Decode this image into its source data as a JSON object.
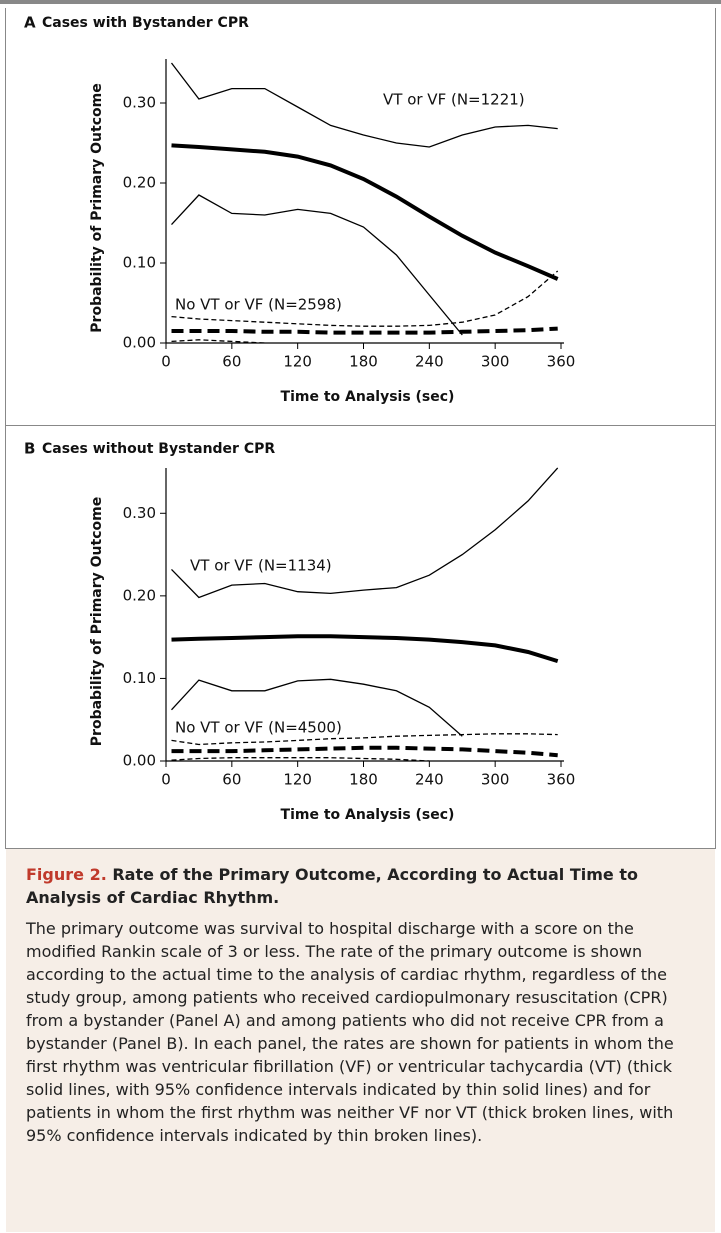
{
  "chart_data": [
    {
      "type": "line",
      "panel": "A",
      "title": "Cases with Bystander CPR",
      "xlabel": "Time to Analysis (sec)",
      "ylabel": "Probability of Primary Outcome",
      "xlim": [
        0,
        360
      ],
      "xticks": [
        0,
        60,
        120,
        180,
        240,
        300,
        360
      ],
      "ylim": [
        0,
        0.35
      ],
      "yticks": [
        {
          "value": 0,
          "label": "0.00"
        },
        {
          "value": 0.1,
          "label": "0.10"
        },
        {
          "value": 0.2,
          "label": "0.20"
        },
        {
          "value": 0.3,
          "label": "0.30"
        }
      ],
      "x": [
        5,
        30,
        60,
        90,
        120,
        150,
        180,
        210,
        240,
        270,
        300,
        330,
        357
      ],
      "series": [
        {
          "color": "#000000",
          "style": "solid",
          "width": 4,
          "values": [
            0.247,
            0.245,
            0.242,
            0.239,
            0.233,
            0.222,
            0.205,
            0.183,
            0.158,
            0.134,
            0.113,
            0.096,
            0.08
          ]
        },
        {
          "color": "#000000",
          "style": "solid",
          "width": 1.3,
          "values": [
            0.35,
            0.305,
            0.318,
            0.318,
            0.295,
            0.272,
            0.26,
            0.25,
            0.245,
            0.26,
            0.27,
            0.272,
            0.268
          ]
        },
        {
          "color": "#000000",
          "style": "solid",
          "width": 1.3,
          "values": [
            0.148,
            0.185,
            0.162,
            0.16,
            0.167,
            0.162,
            0.145,
            0.11,
            0.06,
            0.01,
            null,
            null,
            null
          ]
        },
        {
          "color": "#000000",
          "style": "dashed",
          "width": 4,
          "values": [
            0.015,
            0.015,
            0.015,
            0.014,
            0.014,
            0.013,
            0.013,
            0.013,
            0.013,
            0.014,
            0.015,
            0.016,
            0.018
          ]
        },
        {
          "color": "#000000",
          "style": "dashed",
          "width": 1.3,
          "values": [
            0.033,
            0.03,
            0.028,
            0.026,
            0.024,
            0.022,
            0.021,
            0.021,
            0.022,
            0.026,
            0.035,
            0.058,
            0.09
          ]
        },
        {
          "color": "#000000",
          "style": "dashed",
          "width": 1.3,
          "values": [
            0.002,
            0.004,
            0.002,
            0.0,
            null,
            null,
            null,
            null,
            null,
            null,
            null,
            null,
            null
          ]
        }
      ],
      "annotations": [
        "VT or VF (N=1221)",
        "No VT or VF (N=2598)"
      ]
    },
    {
      "type": "line",
      "panel": "B",
      "title": "Cases without Bystander CPR",
      "xlabel": "Time to Analysis (sec)",
      "ylabel": "Probability of Primary Outcome",
      "xlim": [
        0,
        360
      ],
      "xticks": [
        0,
        60,
        120,
        180,
        240,
        300,
        360
      ],
      "ylim": [
        0,
        0.35
      ],
      "yticks": [
        {
          "value": 0,
          "label": "0.00"
        },
        {
          "value": 0.1,
          "label": "0.10"
        },
        {
          "value": 0.2,
          "label": "0.20"
        },
        {
          "value": 0.3,
          "label": "0.30"
        }
      ],
      "x": [
        5,
        30,
        60,
        90,
        120,
        150,
        180,
        210,
        240,
        270,
        300,
        330,
        357
      ],
      "series": [
        {
          "color": "#000000",
          "style": "solid",
          "width": 4,
          "values": [
            0.147,
            0.148,
            0.149,
            0.15,
            0.151,
            0.151,
            0.15,
            0.149,
            0.147,
            0.144,
            0.14,
            0.132,
            0.121
          ]
        },
        {
          "color": "#000000",
          "style": "solid",
          "width": 1.3,
          "values": [
            0.232,
            0.198,
            0.213,
            0.215,
            0.205,
            0.203,
            0.207,
            0.21,
            0.225,
            0.25,
            0.28,
            0.315,
            0.355
          ]
        },
        {
          "color": "#000000",
          "style": "solid",
          "width": 1.3,
          "values": [
            0.062,
            0.098,
            0.085,
            0.085,
            0.097,
            0.099,
            0.093,
            0.085,
            0.065,
            0.03,
            null,
            null,
            null
          ]
        },
        {
          "color": "#000000",
          "style": "dashed",
          "width": 4,
          "values": [
            0.012,
            0.012,
            0.012,
            0.013,
            0.014,
            0.015,
            0.016,
            0.016,
            0.015,
            0.014,
            0.012,
            0.01,
            0.007
          ]
        },
        {
          "color": "#000000",
          "style": "dashed",
          "width": 1.3,
          "values": [
            0.025,
            0.02,
            0.022,
            0.023,
            0.025,
            0.027,
            0.028,
            0.03,
            0.031,
            0.032,
            0.033,
            0.033,
            0.032
          ]
        },
        {
          "color": "#000000",
          "style": "dashed",
          "width": 1.3,
          "values": [
            0.001,
            0.003,
            0.004,
            0.004,
            0.004,
            0.004,
            0.003,
            0.002,
            0.0,
            null,
            null,
            null,
            null
          ]
        }
      ],
      "annotations": [
        "VT or VF (N=1134)",
        "No VT or VF (N=4500)"
      ]
    }
  ],
  "caption": {
    "label": "Figure 2.",
    "title": "Rate of the Primary Outcome, According to Actual Time to Analysis of Cardiac Rhythm.",
    "text": "The primary outcome was survival to hospital discharge with a score on the modified Rankin scale of 3 or less. The rate of the primary outcome is shown according to the actual time to the analysis of cardiac rhythm, regardless of the study group, among patients who received cardiopulmonary resuscitation (CPR) from a bystander (Panel A) and among patients who did not receive CPR from a bystander (Panel B). In each panel, the rates are shown for patients in whom the first rhythm was ventricular fibrillation (VF) or ventricular tachycardia (VT) (thick solid lines, with 95% confidence intervals indicated by thin solid lines) and for patients in whom the first rhythm was neither VF nor VT (thick broken lines, with 95% confidence intervals indicated by thin broken lines)."
  }
}
